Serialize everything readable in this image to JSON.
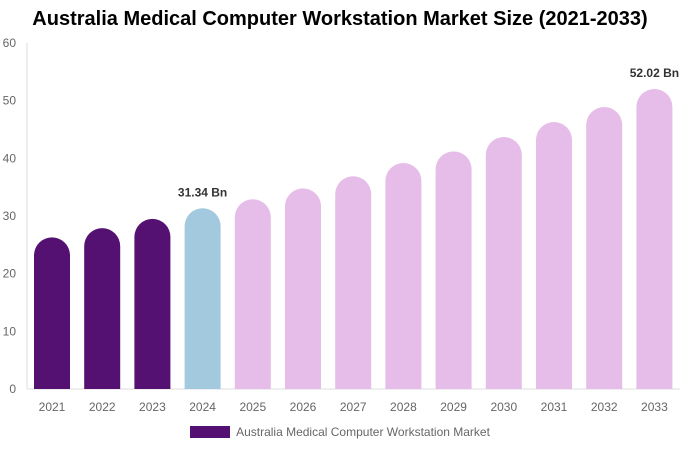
{
  "chart_data": {
    "type": "bar",
    "title": "Australia Medical Computer Workstation Market Size (2021-2033)",
    "categories": [
      "2021",
      "2022",
      "2023",
      "2024",
      "2025",
      "2026",
      "2027",
      "2028",
      "2029",
      "2030",
      "2031",
      "2032",
      "2033"
    ],
    "series": [
      {
        "name": "Australia Medical Computer Workstation Market",
        "values": [
          26.3,
          27.9,
          29.5,
          31.34,
          32.9,
          34.8,
          36.9,
          39.2,
          41.2,
          43.7,
          46.3,
          48.9,
          52.02
        ]
      }
    ],
    "data_labels": {
      "3": "31.34 Bn",
      "12": "52.02 Bn"
    },
    "ylim": [
      0,
      60
    ],
    "yticks": [
      0,
      10,
      20,
      30,
      40,
      50,
      60
    ],
    "xlabel": "",
    "ylabel": "",
    "grid": false,
    "legend": "bottom",
    "colors": {
      "historical": "#541172",
      "base_year": "#a3c9de",
      "forecast": "#e6bde9"
    }
  }
}
